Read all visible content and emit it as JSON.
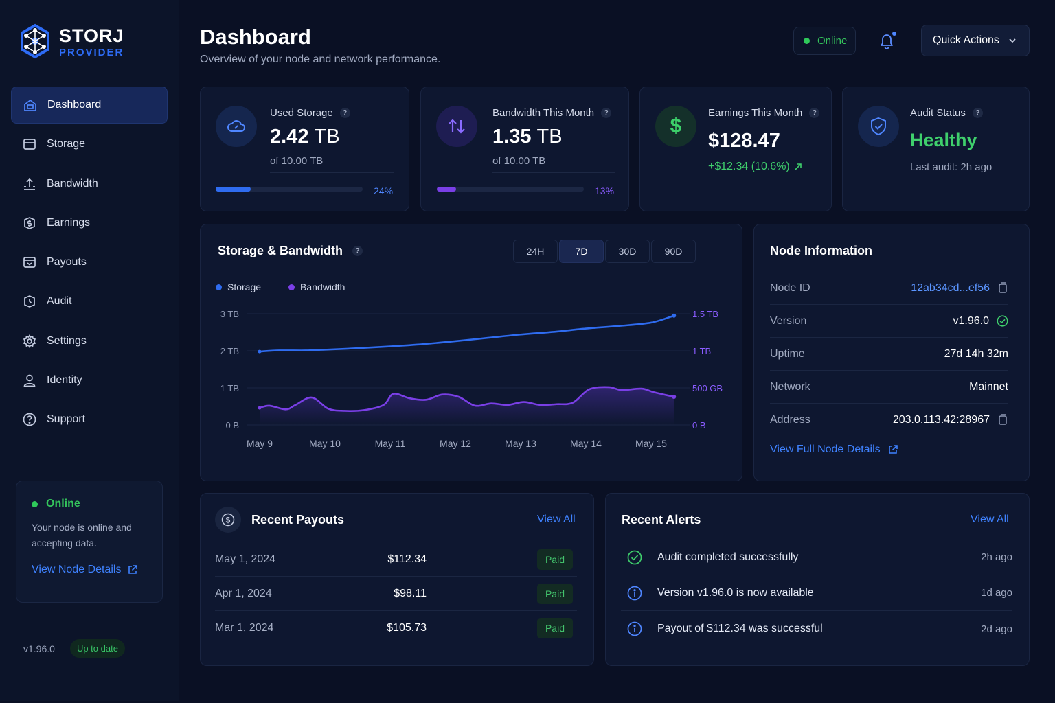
{
  "brand": {
    "title": "STORJ",
    "subtitle": "PROVIDER"
  },
  "sidebar": {
    "items": [
      {
        "label": "Dashboard",
        "icon": "dashboard-icon",
        "active": true
      },
      {
        "label": "Storage",
        "icon": "storage-icon"
      },
      {
        "label": "Bandwidth",
        "icon": "bandwidth-icon"
      },
      {
        "label": "Earnings",
        "icon": "earnings-icon"
      },
      {
        "label": "Payouts",
        "icon": "payouts-icon"
      },
      {
        "label": "Audit",
        "icon": "audit-icon"
      },
      {
        "label": "Settings",
        "icon": "settings-icon"
      },
      {
        "label": "Identity",
        "icon": "identity-icon"
      },
      {
        "label": "Support",
        "icon": "support-icon"
      }
    ],
    "status_card": {
      "status": "Online",
      "text": "Your node is online and accepting data.",
      "link": "View Node Details"
    },
    "version": "v1.96.0",
    "version_badge": "Up to date"
  },
  "header": {
    "title": "Dashboard",
    "subtitle": "Overview of your node and network performance.",
    "status": "Online",
    "quick_actions": "Quick Actions"
  },
  "stats": {
    "storage": {
      "label": "Used Storage",
      "value": "2.42",
      "unit": "TB",
      "sub": "of 10.00 TB",
      "percent_label": "24%",
      "percent": 24
    },
    "bandwidth": {
      "label": "Bandwidth This Month",
      "value": "1.35",
      "unit": "TB",
      "sub": "of 10.00 TB",
      "percent_label": "13%",
      "percent": 13
    },
    "earnings": {
      "label": "Earnings This Month",
      "value": "$128.47",
      "change": "+$12.34 (10.6%)"
    },
    "audit": {
      "label": "Audit Status",
      "value": "Healthy",
      "sub": "Last audit: 2h ago"
    }
  },
  "chart": {
    "title": "Storage & Bandwidth",
    "ranges": [
      "24H",
      "7D",
      "30D",
      "90D"
    ],
    "active_range": "7D",
    "legend": [
      "Storage",
      "Bandwidth"
    ],
    "y_left_ticks": [
      "3 TB",
      "2 TB",
      "1 TB",
      "0 B"
    ],
    "y_right_ticks": [
      "1.5 TB",
      "1 TB",
      "500 GB",
      "0 B"
    ],
    "x_ticks": [
      "May 9",
      "May 10",
      "May 11",
      "May 12",
      "May 13",
      "May 14",
      "May 15"
    ]
  },
  "chart_data": {
    "type": "line",
    "title": "Storage & Bandwidth",
    "x": [
      "May 9",
      "May 10",
      "May 11",
      "May 12",
      "May 13",
      "May 14",
      "May 15"
    ],
    "series": [
      {
        "name": "Storage",
        "axis": "left",
        "unit": "TB",
        "color": "#2f6cf0",
        "x": [
          0,
          0.3,
          0.7,
          1,
          1.5,
          2,
          2.5,
          3,
          3.5,
          4,
          4.5,
          5,
          5.5,
          6,
          6.35
        ],
        "values": [
          1.98,
          2.01,
          2.01,
          2.03,
          2.07,
          2.12,
          2.18,
          2.26,
          2.35,
          2.44,
          2.51,
          2.6,
          2.67,
          2.76,
          2.95
        ]
      },
      {
        "name": "Bandwidth",
        "axis": "right",
        "unit": "TB",
        "color": "#7a3fe6",
        "x": [
          0,
          0.15,
          0.4,
          0.55,
          0.8,
          1.05,
          1.3,
          1.6,
          1.9,
          2.05,
          2.3,
          2.55,
          2.8,
          3.05,
          3.3,
          3.55,
          3.8,
          4.05,
          4.3,
          4.55,
          4.8,
          5.05,
          5.35,
          5.55,
          5.85,
          6.05,
          6.35
        ],
        "values": [
          0.23,
          0.26,
          0.21,
          0.27,
          0.37,
          0.22,
          0.19,
          0.2,
          0.27,
          0.42,
          0.36,
          0.34,
          0.41,
          0.38,
          0.26,
          0.29,
          0.27,
          0.31,
          0.27,
          0.28,
          0.3,
          0.48,
          0.51,
          0.47,
          0.49,
          0.44,
          0.38
        ]
      }
    ],
    "y_left": {
      "label": "",
      "range": [
        0,
        3
      ],
      "ticks": [
        "0 B",
        "1 TB",
        "2 TB",
        "3 TB"
      ]
    },
    "y_right": {
      "label": "",
      "range": [
        0,
        1.5
      ],
      "ticks": [
        "0 B",
        "500 GB",
        "1 TB",
        "1.5 TB"
      ]
    },
    "grid": true,
    "legend_position": "top-left"
  },
  "node_info": {
    "title": "Node Information",
    "rows": [
      {
        "key": "Node ID",
        "value": "12ab34cd...ef56"
      },
      {
        "key": "Version",
        "value": "v1.96.0"
      },
      {
        "key": "Uptime",
        "value": "27d 14h 32m"
      },
      {
        "key": "Network",
        "value": "Mainnet"
      },
      {
        "key": "Address",
        "value": "203.0.113.42:28967"
      }
    ],
    "link": "View Full Node Details"
  },
  "payouts": {
    "title": "Recent Payouts",
    "view_all": "View All",
    "rows": [
      {
        "date": "May 1, 2024",
        "amount": "$112.34",
        "status": "Paid"
      },
      {
        "date": "Apr 1, 2024",
        "amount": "$98.11",
        "status": "Paid"
      },
      {
        "date": "Mar 1, 2024",
        "amount": "$105.73",
        "status": "Paid"
      }
    ]
  },
  "alerts": {
    "title": "Recent Alerts",
    "view_all": "View All",
    "rows": [
      {
        "text": "Audit completed successfully",
        "time": "2h ago",
        "icon": "check-circle-icon"
      },
      {
        "text": "Version v1.96.0 is now available",
        "time": "1d ago",
        "icon": "info-icon"
      },
      {
        "text": "Payout of $112.34 was successful",
        "time": "2d ago",
        "icon": "info-icon"
      }
    ]
  },
  "colors": {
    "accent": "#2e6cf6",
    "success": "#34c45c",
    "purple": "#7a3fe6",
    "background": "#0a1024"
  }
}
